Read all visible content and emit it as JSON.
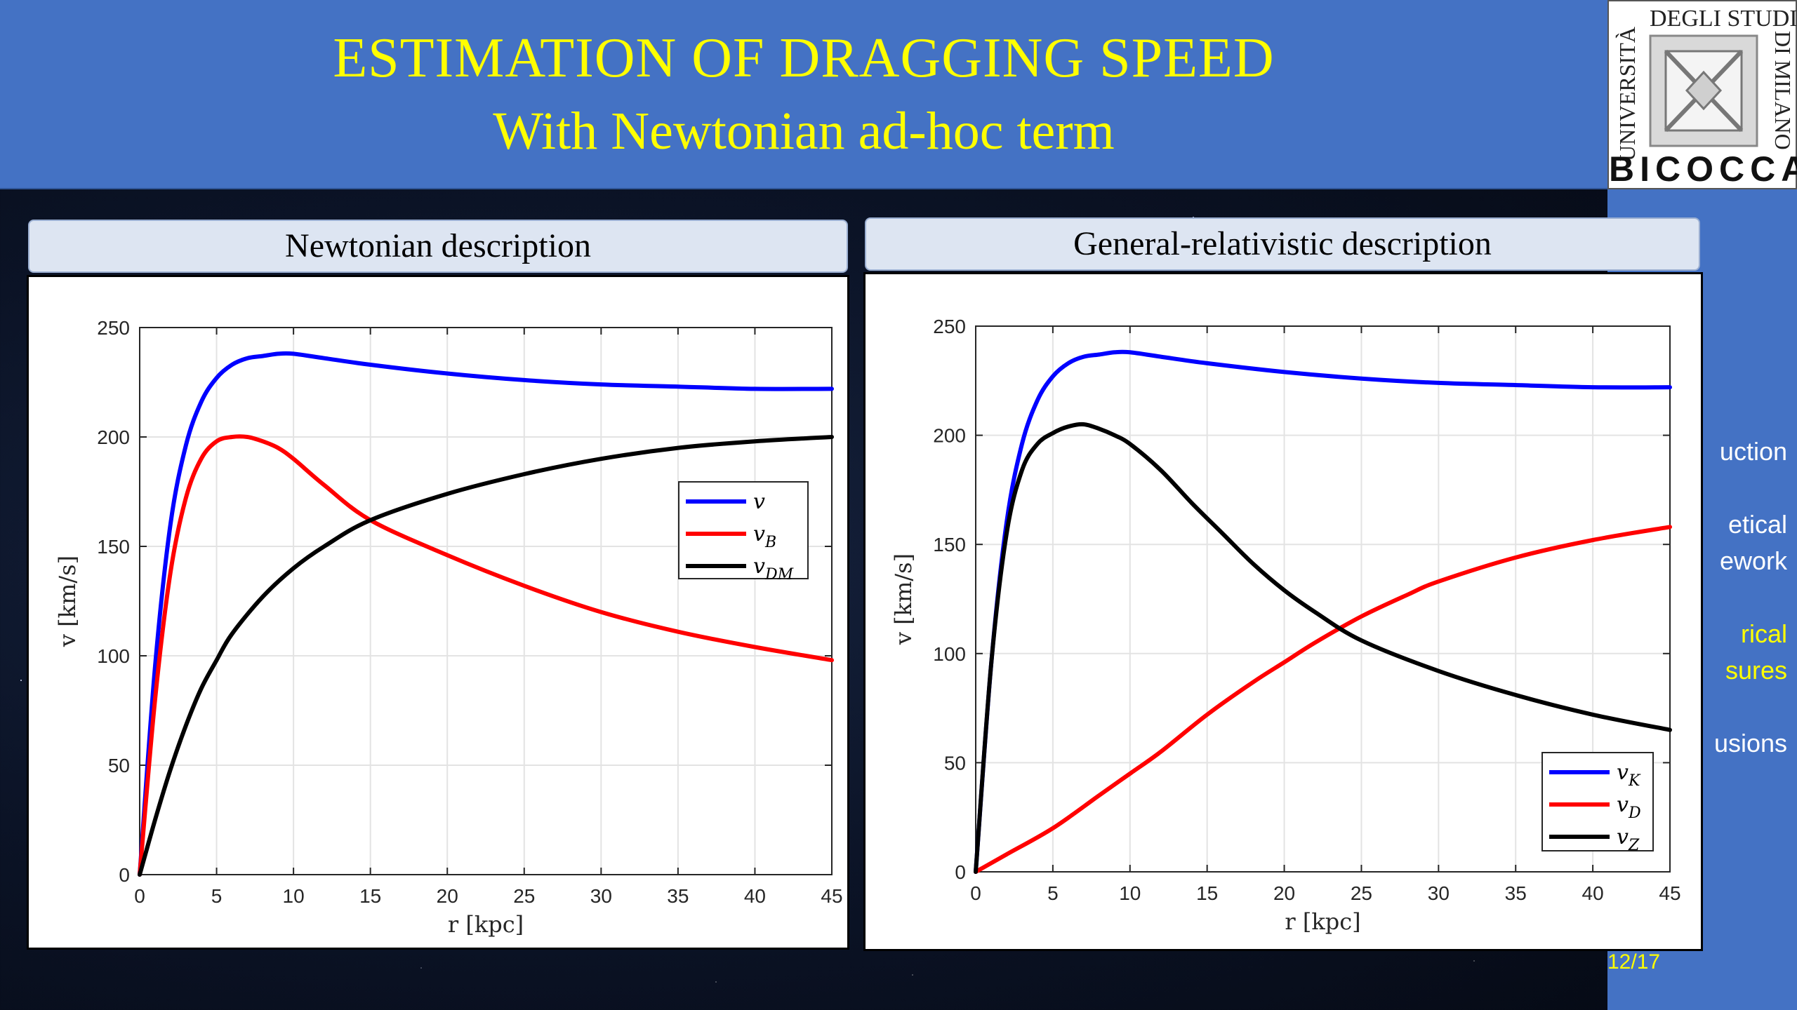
{
  "header": {
    "title": "ESTIMATION OF DRAGGING SPEED",
    "subtitle": "With Newtonian ad-hoc term"
  },
  "logo": {
    "top_text": "DEGLI STUDI",
    "left_text": "UNIVERSITÀ",
    "right_text": "DI MILANO",
    "bottom_text": "BICOCCA"
  },
  "sidebar": {
    "items": [
      {
        "lines": [
          "uction"
        ],
        "active": false
      },
      {
        "lines": [
          "etical",
          "ework"
        ],
        "active": false
      },
      {
        "lines": [
          "rical",
          "sures"
        ],
        "active": true
      },
      {
        "lines": [
          "usions"
        ],
        "active": false
      }
    ]
  },
  "page_number": "12/17",
  "panels": [
    {
      "title": "Newtonian description"
    },
    {
      "title": "General-relativistic description"
    }
  ],
  "colors": {
    "blue": "#0000ff",
    "red": "#ff0000",
    "black": "#000000",
    "header": "#4472c4",
    "title": "#ffff00"
  },
  "chart_data": [
    {
      "type": "line",
      "xlabel": "r [kpc]",
      "ylabel": "v [km/s]",
      "xlim": [
        0,
        45
      ],
      "ylim": [
        0,
        250
      ],
      "xticks": [
        0,
        5,
        10,
        15,
        20,
        25,
        30,
        35,
        40,
        45
      ],
      "yticks": [
        0,
        50,
        100,
        150,
        200,
        250
      ],
      "grid": true,
      "legend_position": "center-right",
      "series": [
        {
          "name": "v",
          "sub": "",
          "color": "#0000ff",
          "x": [
            0,
            1,
            2,
            3,
            4,
            5,
            6,
            7,
            8,
            9,
            10,
            12,
            15,
            20,
            25,
            30,
            35,
            40,
            45
          ],
          "y": [
            0,
            95,
            160,
            196,
            216,
            227,
            233,
            236,
            237,
            238,
            238,
            236,
            233,
            229,
            226,
            224,
            223,
            222,
            222
          ]
        },
        {
          "name": "v",
          "sub": "B",
          "color": "#ff0000",
          "x": [
            0,
            1,
            2,
            3,
            4,
            5,
            6,
            7,
            8,
            9,
            10,
            12,
            15,
            20,
            25,
            30,
            35,
            40,
            45
          ],
          "y": [
            0,
            80,
            138,
            172,
            190,
            198,
            200,
            200,
            198,
            195,
            190,
            178,
            162,
            146,
            132,
            120,
            111,
            104,
            98
          ]
        },
        {
          "name": "v",
          "sub": "DM",
          "color": "#000000",
          "x": [
            0,
            1,
            2,
            3,
            4,
            5,
            6,
            8,
            10,
            12,
            15,
            20,
            25,
            30,
            35,
            40,
            45
          ],
          "y": [
            0,
            25,
            48,
            68,
            85,
            98,
            110,
            127,
            140,
            150,
            162,
            174,
            183,
            190,
            195,
            198,
            200
          ]
        }
      ]
    },
    {
      "type": "line",
      "xlabel": "r [kpc]",
      "ylabel": "v [km/s]",
      "xlim": [
        0,
        45
      ],
      "ylim": [
        0,
        250
      ],
      "xticks": [
        0,
        5,
        10,
        15,
        20,
        25,
        30,
        35,
        40,
        45
      ],
      "yticks": [
        0,
        50,
        100,
        150,
        200,
        250
      ],
      "grid": true,
      "legend_position": "bottom-right",
      "series": [
        {
          "name": "v",
          "sub": "K",
          "color": "#0000ff",
          "x": [
            0,
            1,
            2,
            3,
            4,
            5,
            6,
            7,
            8,
            9,
            10,
            12,
            15,
            20,
            25,
            30,
            35,
            40,
            45
          ],
          "y": [
            0,
            95,
            160,
            196,
            216,
            227,
            233,
            236,
            237,
            238,
            238,
            236,
            233,
            229,
            226,
            224,
            223,
            222,
            222
          ]
        },
        {
          "name": "v",
          "sub": "D",
          "color": "#ff0000",
          "x": [
            0,
            2,
            5,
            8,
            10,
            12,
            15,
            18,
            20,
            22,
            25,
            28,
            30,
            35,
            40,
            45
          ],
          "y": [
            0,
            8,
            20,
            35,
            45,
            55,
            72,
            87,
            96,
            105,
            117,
            127,
            133,
            144,
            152,
            158
          ]
        },
        {
          "name": "v",
          "sub": "Z",
          "color": "#000000",
          "x": [
            0,
            1,
            2,
            3,
            4,
            5,
            6,
            7,
            8,
            9,
            10,
            12,
            14,
            16,
            18,
            20,
            22,
            25,
            30,
            35,
            40,
            45
          ],
          "y": [
            0,
            95,
            155,
            184,
            196,
            201,
            204,
            205,
            203,
            200,
            196,
            184,
            169,
            155,
            141,
            129,
            119,
            106,
            92,
            81,
            72,
            65
          ]
        }
      ]
    }
  ]
}
